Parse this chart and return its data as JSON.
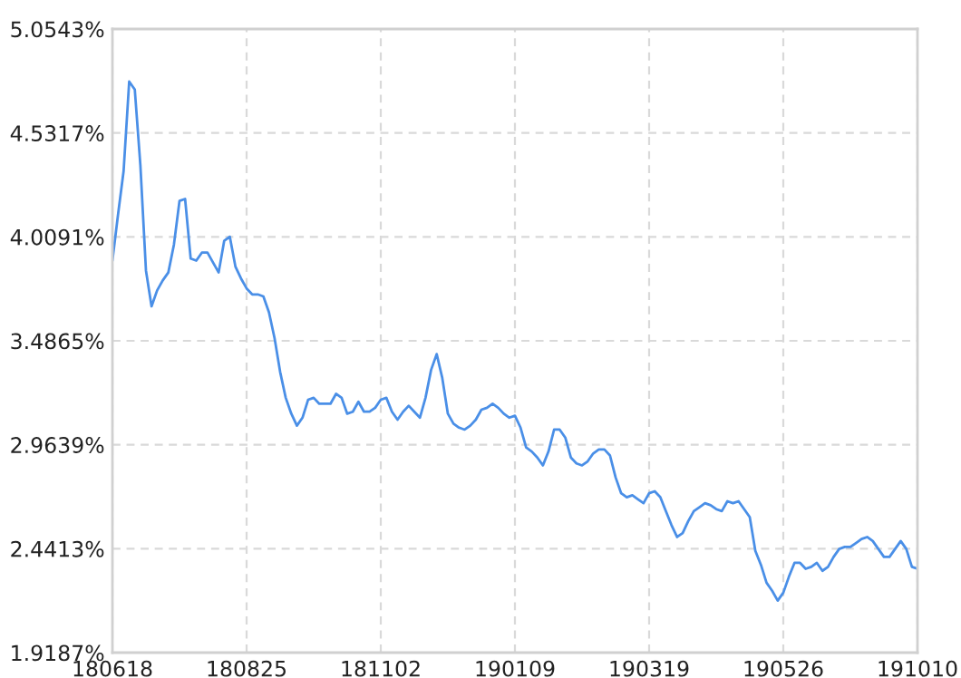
{
  "chart_data": {
    "type": "line",
    "grid": true,
    "marker": "none",
    "line_style": "solid",
    "categories": [
      "180618",
      null,
      null,
      null,
      null,
      null,
      null,
      null,
      null,
      null,
      null,
      null,
      null,
      null,
      null,
      null,
      null,
      null,
      null,
      null,
      null,
      null,
      null,
      null,
      "180825",
      null,
      null,
      null,
      null,
      null,
      null,
      null,
      null,
      null,
      null,
      null,
      null,
      null,
      null,
      null,
      null,
      null,
      null,
      null,
      null,
      null,
      null,
      null,
      "181102",
      null,
      null,
      null,
      null,
      null,
      null,
      null,
      null,
      null,
      null,
      null,
      null,
      null,
      null,
      null,
      null,
      null,
      null,
      null,
      null,
      null,
      null,
      null,
      "190109",
      null,
      null,
      null,
      null,
      null,
      null,
      null,
      null,
      null,
      null,
      null,
      null,
      null,
      null,
      null,
      null,
      null,
      null,
      null,
      null,
      null,
      null,
      null,
      "190319",
      null,
      null,
      null,
      null,
      null,
      null,
      null,
      null,
      null,
      null,
      null,
      null,
      null,
      null,
      null,
      null,
      null,
      null,
      null,
      null,
      null,
      null,
      null,
      "190526",
      null,
      null,
      null,
      null,
      null,
      null,
      null,
      null,
      null,
      null,
      null,
      null,
      null,
      null,
      null,
      null,
      null,
      null,
      null,
      null,
      null,
      null,
      null,
      "191010"
    ],
    "ylim": [
      1.9187,
      5.0543
    ],
    "yticks": [
      {
        "value": 1.9187,
        "label": "1.9187%"
      },
      {
        "value": 2.4413,
        "label": "2.4413%"
      },
      {
        "value": 2.9639,
        "label": "2.9639%"
      },
      {
        "value": 3.4865,
        "label": "3.4865%"
      },
      {
        "value": 4.0091,
        "label": "4.0091%"
      },
      {
        "value": 4.5317,
        "label": "4.5317%"
      },
      {
        "value": 5.0543,
        "label": "5.0543%"
      }
    ],
    "series": [
      {
        "color": "#4a8fe7",
        "values": [
          3.89,
          4.12,
          4.34,
          4.79,
          4.75,
          4.37,
          3.84,
          3.66,
          3.74,
          3.79,
          3.83,
          3.97,
          4.19,
          4.2,
          3.9,
          3.89,
          3.93,
          3.93,
          3.88,
          3.83,
          3.99,
          4.01,
          3.86,
          3.8,
          3.75,
          3.72,
          3.72,
          3.71,
          3.63,
          3.5,
          3.33,
          3.2,
          3.12,
          3.06,
          3.1,
          3.19,
          3.2,
          3.17,
          3.17,
          3.17,
          3.22,
          3.2,
          3.12,
          3.13,
          3.18,
          3.13,
          3.13,
          3.15,
          3.19,
          3.2,
          3.13,
          3.09,
          3.13,
          3.16,
          3.13,
          3.1,
          3.2,
          3.34,
          3.42,
          3.3,
          3.12,
          3.07,
          3.05,
          3.04,
          3.06,
          3.09,
          3.14,
          3.15,
          3.17,
          3.15,
          3.12,
          3.1,
          3.11,
          3.05,
          2.95,
          2.93,
          2.9,
          2.86,
          2.93,
          3.04,
          3.04,
          3.0,
          2.9,
          2.87,
          2.86,
          2.88,
          2.92,
          2.94,
          2.94,
          2.91,
          2.8,
          2.72,
          2.7,
          2.71,
          2.69,
          2.67,
          2.72,
          2.73,
          2.7,
          2.63,
          2.56,
          2.5,
          2.52,
          2.58,
          2.63,
          2.65,
          2.67,
          2.66,
          2.64,
          2.63,
          2.68,
          2.67,
          2.68,
          2.64,
          2.6,
          2.43,
          2.36,
          2.27,
          2.23,
          2.18,
          2.22,
          2.3,
          2.37,
          2.37,
          2.34,
          2.35,
          2.37,
          2.33,
          2.35,
          2.4,
          2.44,
          2.45,
          2.45,
          2.47,
          2.49,
          2.5,
          2.48,
          2.44,
          2.4,
          2.4,
          2.44,
          2.48,
          2.44,
          2.35,
          2.34
        ]
      }
    ]
  }
}
